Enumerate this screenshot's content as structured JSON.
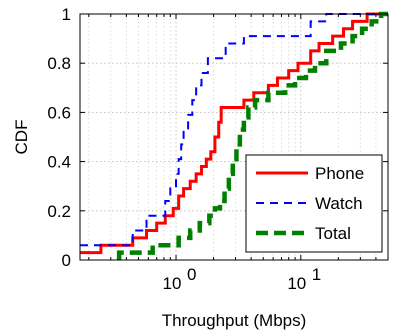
{
  "chart_data": {
    "type": "line",
    "xlabel": "Throughput (Mbps)",
    "ylabel": "CDF",
    "xscale": "log",
    "xlim": [
      0.17,
      50
    ],
    "ylim": [
      0,
      1
    ],
    "grid": true,
    "legend_position": "bottom-right",
    "xticks": [
      {
        "value": 1,
        "base": "10",
        "exp": "0"
      },
      {
        "value": 10,
        "base": "10",
        "exp": "1"
      }
    ],
    "yticks": [
      {
        "value": 0,
        "label": "0"
      },
      {
        "value": 0.2,
        "label": "0.2"
      },
      {
        "value": 0.4,
        "label": "0.4"
      },
      {
        "value": 0.6,
        "label": "0.6"
      },
      {
        "value": 0.8,
        "label": "0.8"
      },
      {
        "value": 1,
        "label": "1"
      }
    ],
    "series": [
      {
        "name": "Phone",
        "color": "#ff0000",
        "dash": "solid",
        "width": 3,
        "points": [
          [
            0.17,
            0.03
          ],
          [
            0.25,
            0.03
          ],
          [
            0.25,
            0.06
          ],
          [
            0.45,
            0.06
          ],
          [
            0.45,
            0.09
          ],
          [
            0.58,
            0.09
          ],
          [
            0.58,
            0.12
          ],
          [
            0.7,
            0.12
          ],
          [
            0.7,
            0.15
          ],
          [
            0.82,
            0.15
          ],
          [
            0.82,
            0.18
          ],
          [
            0.95,
            0.18
          ],
          [
            0.95,
            0.21
          ],
          [
            1.05,
            0.21
          ],
          [
            1.05,
            0.26
          ],
          [
            1.15,
            0.26
          ],
          [
            1.15,
            0.29
          ],
          [
            1.3,
            0.29
          ],
          [
            1.3,
            0.32
          ],
          [
            1.45,
            0.32
          ],
          [
            1.45,
            0.35
          ],
          [
            1.6,
            0.35
          ],
          [
            1.6,
            0.38
          ],
          [
            1.75,
            0.38
          ],
          [
            1.75,
            0.41
          ],
          [
            1.9,
            0.41
          ],
          [
            1.9,
            0.44
          ],
          [
            2.05,
            0.44
          ],
          [
            2.05,
            0.5
          ],
          [
            2.2,
            0.5
          ],
          [
            2.2,
            0.56
          ],
          [
            2.3,
            0.56
          ],
          [
            2.3,
            0.62
          ],
          [
            3.5,
            0.62
          ],
          [
            3.5,
            0.65
          ],
          [
            4.2,
            0.65
          ],
          [
            4.2,
            0.68
          ],
          [
            5.5,
            0.68
          ],
          [
            5.5,
            0.71
          ],
          [
            6.5,
            0.71
          ],
          [
            6.5,
            0.74
          ],
          [
            8,
            0.74
          ],
          [
            8,
            0.77
          ],
          [
            9.5,
            0.77
          ],
          [
            9.5,
            0.8
          ],
          [
            12,
            0.8
          ],
          [
            12,
            0.85
          ],
          [
            14,
            0.85
          ],
          [
            14,
            0.88
          ],
          [
            18,
            0.88
          ],
          [
            18,
            0.91
          ],
          [
            22,
            0.91
          ],
          [
            22,
            0.94
          ],
          [
            26,
            0.94
          ],
          [
            26,
            0.97
          ],
          [
            34,
            0.97
          ],
          [
            34,
            1.0
          ],
          [
            50,
            1.0
          ]
        ]
      },
      {
        "name": "Watch",
        "color": "#0000ff",
        "dash": "8 6",
        "width": 2,
        "points": [
          [
            0.17,
            0.06
          ],
          [
            0.45,
            0.06
          ],
          [
            0.45,
            0.12
          ],
          [
            0.58,
            0.12
          ],
          [
            0.58,
            0.18
          ],
          [
            0.82,
            0.18
          ],
          [
            0.82,
            0.24
          ],
          [
            0.9,
            0.24
          ],
          [
            0.9,
            0.3
          ],
          [
            1.0,
            0.3
          ],
          [
            1.0,
            0.35
          ],
          [
            1.05,
            0.35
          ],
          [
            1.05,
            0.41
          ],
          [
            1.1,
            0.41
          ],
          [
            1.1,
            0.47
          ],
          [
            1.15,
            0.47
          ],
          [
            1.15,
            0.53
          ],
          [
            1.25,
            0.53
          ],
          [
            1.25,
            0.59
          ],
          [
            1.35,
            0.59
          ],
          [
            1.35,
            0.65
          ],
          [
            1.45,
            0.65
          ],
          [
            1.45,
            0.71
          ],
          [
            1.6,
            0.71
          ],
          [
            1.6,
            0.76
          ],
          [
            1.8,
            0.76
          ],
          [
            1.8,
            0.82
          ],
          [
            2.5,
            0.82
          ],
          [
            2.5,
            0.88
          ],
          [
            3.5,
            0.88
          ],
          [
            3.5,
            0.91
          ],
          [
            12,
            0.91
          ],
          [
            12,
            0.97
          ],
          [
            16,
            0.97
          ],
          [
            16,
            1.0
          ],
          [
            50,
            1.0
          ]
        ]
      },
      {
        "name": "Total",
        "color": "#008000",
        "dash": "12 6",
        "width": 4.5,
        "points": [
          [
            0.35,
            0.0
          ],
          [
            0.35,
            0.03
          ],
          [
            0.65,
            0.03
          ],
          [
            0.65,
            0.06
          ],
          [
            1.05,
            0.06
          ],
          [
            1.05,
            0.09
          ],
          [
            1.3,
            0.09
          ],
          [
            1.3,
            0.12
          ],
          [
            1.55,
            0.12
          ],
          [
            1.55,
            0.15
          ],
          [
            1.85,
            0.15
          ],
          [
            1.85,
            0.18
          ],
          [
            2.05,
            0.18
          ],
          [
            2.05,
            0.21
          ],
          [
            2.25,
            0.21
          ],
          [
            2.25,
            0.24
          ],
          [
            2.45,
            0.24
          ],
          [
            2.45,
            0.29
          ],
          [
            2.65,
            0.29
          ],
          [
            2.65,
            0.35
          ],
          [
            2.85,
            0.35
          ],
          [
            2.85,
            0.41
          ],
          [
            3.05,
            0.41
          ],
          [
            3.05,
            0.47
          ],
          [
            3.25,
            0.47
          ],
          [
            3.25,
            0.53
          ],
          [
            3.5,
            0.53
          ],
          [
            3.5,
            0.58
          ],
          [
            3.8,
            0.58
          ],
          [
            3.8,
            0.62
          ],
          [
            4.3,
            0.62
          ],
          [
            4.3,
            0.65
          ],
          [
            5.5,
            0.65
          ],
          [
            5.5,
            0.68
          ],
          [
            7.5,
            0.68
          ],
          [
            7.5,
            0.71
          ],
          [
            9,
            0.71
          ],
          [
            9,
            0.74
          ],
          [
            11,
            0.74
          ],
          [
            11,
            0.77
          ],
          [
            13,
            0.77
          ],
          [
            13,
            0.8
          ],
          [
            16,
            0.8
          ],
          [
            16,
            0.85
          ],
          [
            21,
            0.85
          ],
          [
            21,
            0.88
          ],
          [
            26,
            0.88
          ],
          [
            26,
            0.91
          ],
          [
            31,
            0.91
          ],
          [
            31,
            0.94
          ],
          [
            37,
            0.94
          ],
          [
            37,
            0.97
          ],
          [
            44,
            0.97
          ],
          [
            44,
            1.0
          ],
          [
            50,
            1.0
          ]
        ]
      }
    ]
  }
}
